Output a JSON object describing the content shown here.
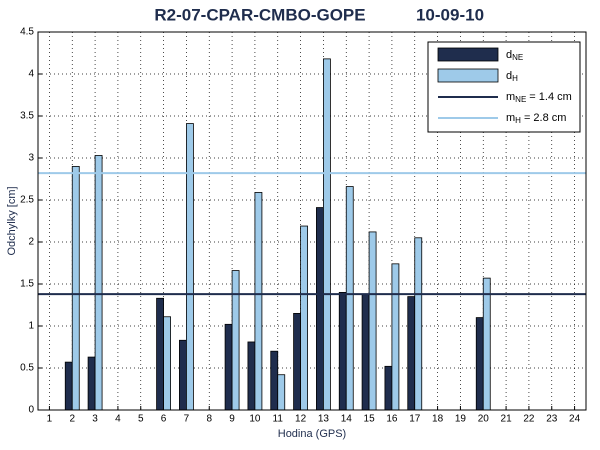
{
  "chart_data": {
    "type": "bar",
    "title": "R2-07-CPAR-CMBO-GOPE",
    "subtitle": "10-09-10",
    "x_label": "Hodina (GPS)",
    "y_label": "Odchylky [cm]",
    "categories": [
      "1",
      "2",
      "3",
      "4",
      "5",
      "6",
      "7",
      "8",
      "9",
      "10",
      "11",
      "12",
      "13",
      "14",
      "15",
      "16",
      "17",
      "18",
      "19",
      "20",
      "21",
      "22",
      "23",
      "24"
    ],
    "series": [
      {
        "name": "d",
        "name_sub": "NE",
        "color": "#1f2d4d",
        "values": [
          null,
          0.57,
          0.63,
          null,
          null,
          1.33,
          0.83,
          null,
          1.02,
          0.81,
          0.7,
          1.15,
          2.41,
          1.4,
          1.38,
          0.52,
          1.35,
          null,
          null,
          1.1,
          null,
          null,
          null,
          null
        ]
      },
      {
        "name": "d",
        "name_sub": "H",
        "color": "#9ecae9",
        "values": [
          null,
          2.9,
          3.03,
          null,
          null,
          1.11,
          3.41,
          null,
          1.66,
          2.59,
          0.42,
          2.19,
          4.18,
          2.66,
          2.12,
          1.74,
          2.05,
          null,
          null,
          1.57,
          null,
          null,
          null,
          null
        ]
      }
    ],
    "hlines": [
      {
        "name": "m",
        "name_sub": "NE",
        "label": "= 1.4 cm",
        "value": 1.38,
        "color": "#1f2d4d"
      },
      {
        "name": "m",
        "name_sub": "H",
        "label": "= 2.8 cm",
        "value": 2.82,
        "color": "#9ecae9"
      }
    ],
    "ylim": [
      0,
      4.5
    ],
    "yticks": [
      0,
      0.5,
      1,
      1.5,
      2,
      2.5,
      3,
      3.5,
      4,
      4.5
    ],
    "grid": true,
    "legend": "upper right"
  }
}
